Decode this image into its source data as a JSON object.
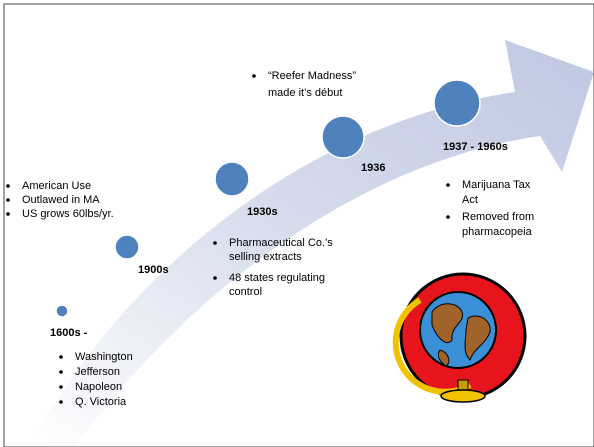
{
  "events": [
    {
      "label": "1600s -",
      "items": [
        [
          "Washington"
        ],
        [
          "Jefferson"
        ],
        [
          "Napoleon"
        ],
        [
          "Q. Victoria"
        ]
      ]
    },
    {
      "label": "1900s",
      "items": [
        [
          "American Use"
        ],
        [
          "Outlawed in MA"
        ],
        [
          "US grows 60lbs/yr."
        ]
      ]
    },
    {
      "label": "1930s",
      "items": [
        [
          "Pharmaceutical Co.’s",
          "selling extracts"
        ],
        [
          "48 states regulating",
          "control"
        ]
      ]
    },
    {
      "label": "1936",
      "items": [
        [
          "“Reefer Madness”",
          "made it’s début"
        ]
      ]
    },
    {
      "label": "1937 - 1960s",
      "items": [
        [
          "Marijuana Tax",
          "Act"
        ],
        [
          "Removed from",
          "pharmacopeia"
        ]
      ]
    }
  ]
}
